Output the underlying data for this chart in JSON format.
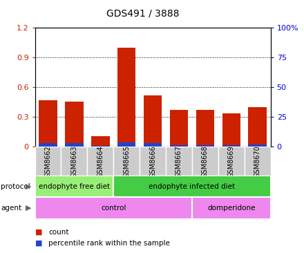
{
  "title": "GDS491 / 3888",
  "samples": [
    "GSM8662",
    "GSM8663",
    "GSM8664",
    "GSM8665",
    "GSM8666",
    "GSM8667",
    "GSM8668",
    "GSM8669",
    "GSM8670"
  ],
  "red_values": [
    0.47,
    0.455,
    0.105,
    1.0,
    0.52,
    0.37,
    0.375,
    0.34,
    0.4
  ],
  "blue_values": [
    0.038,
    0.035,
    0.012,
    0.045,
    0.035,
    0.018,
    0.018,
    0.016,
    0.025
  ],
  "ylim": [
    0,
    1.2
  ],
  "y2lim": [
    0,
    100
  ],
  "yticks": [
    0,
    0.3,
    0.6,
    0.9,
    1.2
  ],
  "ytick_labels": [
    "0",
    "0.3",
    "0.6",
    "0.9",
    "1.2"
  ],
  "y2ticks": [
    0,
    25,
    50,
    75,
    100
  ],
  "y2tick_labels": [
    "0",
    "25",
    "50",
    "75",
    "100%"
  ],
  "bar_color": "#cc2200",
  "blue_color": "#2244cc",
  "protocol_groups": [
    {
      "label": "endophyte free diet",
      "start": 0,
      "end": 3,
      "color": "#99ee77"
    },
    {
      "label": "endophyte infected diet",
      "start": 3,
      "end": 9,
      "color": "#44cc44"
    }
  ],
  "agent_groups": [
    {
      "label": "control",
      "start": 0,
      "end": 6,
      "color": "#ee88ee"
    },
    {
      "label": "domperidone",
      "start": 6,
      "end": 9,
      "color": "#ee88ee"
    }
  ],
  "legend_items": [
    {
      "color": "#cc2200",
      "label": "count"
    },
    {
      "color": "#2244cc",
      "label": "percentile rank within the sample"
    }
  ],
  "left_tick_color": "#cc2200",
  "right_tick_color": "#0000cc",
  "sample_box_color": "#cccccc",
  "plot_bg": "#ffffff"
}
